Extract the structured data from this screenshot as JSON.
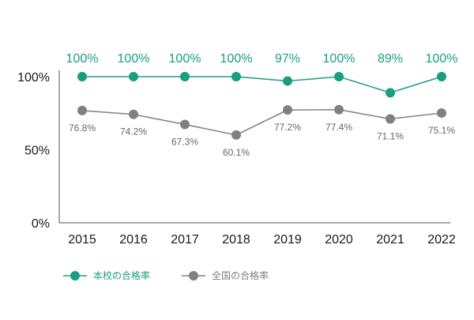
{
  "colors": {
    "school": "#1a9e80",
    "national": "#808080",
    "axis": "#555555",
    "text": "#1a1a1a"
  },
  "chart_data": {
    "type": "line",
    "categories": [
      "2015",
      "2016",
      "2017",
      "2018",
      "2019",
      "2020",
      "2021",
      "2022"
    ],
    "ylim": [
      0,
      100
    ],
    "yticks": [
      {
        "value": 0,
        "label": "0%"
      },
      {
        "value": 50,
        "label": "50%"
      },
      {
        "value": 100,
        "label": "100%"
      }
    ],
    "grid": false,
    "legend_position": "bottom-left",
    "series": [
      {
        "name": "本校の合格率",
        "values": [
          100,
          100,
          100,
          100,
          97,
          100,
          89,
          100
        ],
        "labels": [
          "100%",
          "100%",
          "100%",
          "100%",
          "97%",
          "100%",
          "89%",
          "100%"
        ]
      },
      {
        "name": "全国の合格率",
        "values": [
          76.8,
          74.2,
          67.3,
          60.1,
          77.2,
          77.4,
          71.1,
          75.1
        ],
        "labels": [
          "76.8%",
          "74.2%",
          "67.3%",
          "60.1%",
          "77.2%",
          "77.4%",
          "71.1%",
          "75.1%"
        ]
      }
    ]
  }
}
